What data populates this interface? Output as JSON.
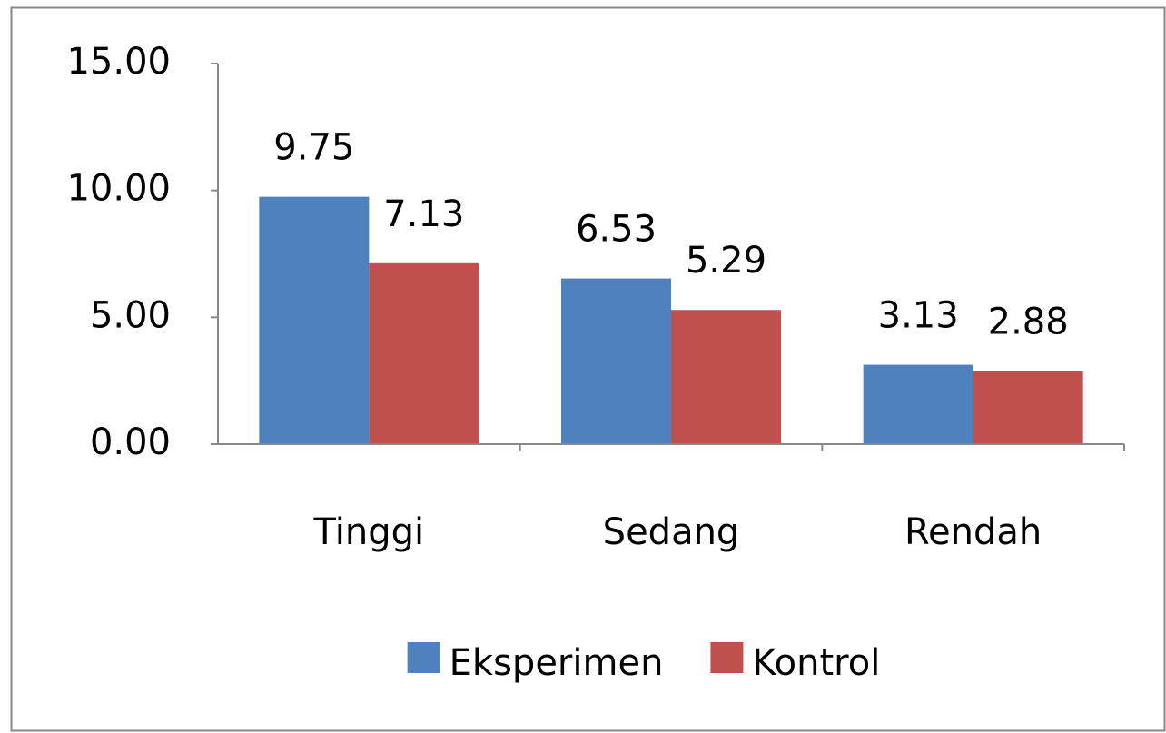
{
  "chart_data": {
    "type": "bar",
    "categories": [
      "Tinggi",
      "Sedang",
      "Rendah"
    ],
    "series": [
      {
        "name": "Eksperimen",
        "color": "#4f81bd",
        "values": [
          9.75,
          6.53,
          3.13
        ]
      },
      {
        "name": "Kontrol",
        "color": "#c0504d",
        "values": [
          7.13,
          5.29,
          2.88
        ]
      }
    ],
    "ylim": [
      0,
      15
    ],
    "yticks": [
      {
        "value": 0,
        "label": "0.00"
      },
      {
        "value": 5,
        "label": "5.00"
      },
      {
        "value": 10,
        "label": "10.00"
      },
      {
        "value": 15,
        "label": "15.00"
      }
    ],
    "grid": false,
    "legend": "bottom"
  }
}
